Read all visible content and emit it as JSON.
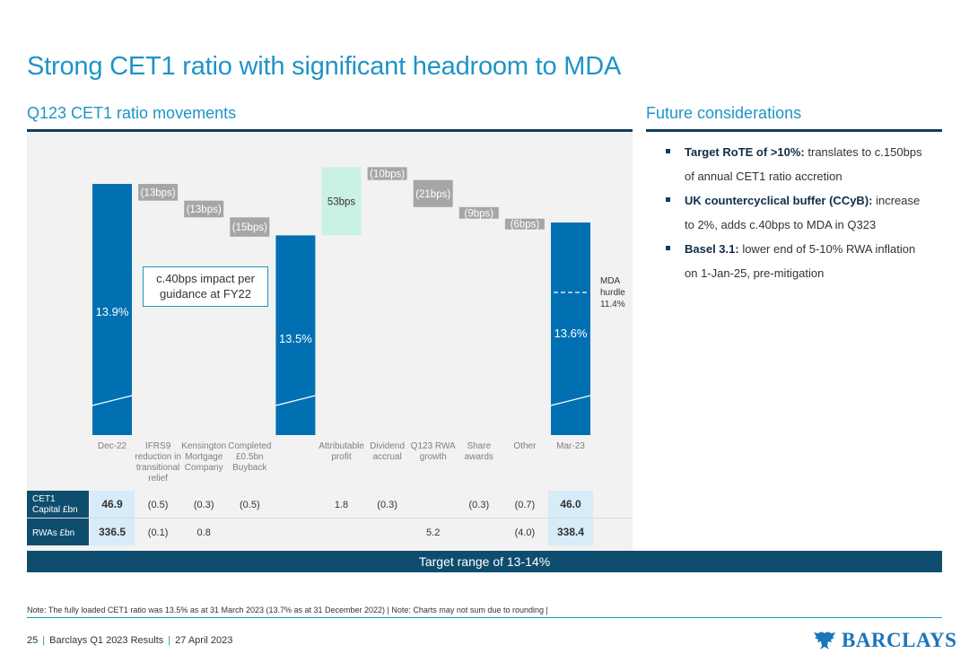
{
  "title": "Strong CET1 ratio with significant headroom to MDA",
  "left_section": {
    "heading": "Q123 CET1 ratio movements"
  },
  "right_section": {
    "heading": "Future considerations",
    "bullets": [
      {
        "bold": "Target RoTE of >10%:",
        "text": " translates to c.150bps of annual CET1 ratio accretion"
      },
      {
        "bold": "UK countercyclical buffer (CCyB):",
        "text": " increase to 2%, adds c.40bps to MDA in Q323"
      },
      {
        "bold": "Basel 3.1:",
        "text": " lower end of 5-10% RWA inflation on 1-Jan-25, pre-mitigation"
      }
    ]
  },
  "impact_note": "c.40bps impact per guidance at FY22",
  "target_range": "Target range of 13-14%",
  "note": "Note: The fully loaded CET1 ratio was 13.5% as at 31 March 2023 (13.7% as at 31 December 2022) | Note: Charts may not sum due to rounding |",
  "footer": {
    "page": "25",
    "doc": "Barclays Q1 2023 Results",
    "date": "27 April 2023"
  },
  "logo_text": "BARCLAYS",
  "colors": {
    "title": "#1e94c8",
    "total_bar": "#0070b2",
    "negative_bar": "#a6a6a6",
    "positive_bar": "#c9f2e4",
    "dark_navy": "#0f4d6e",
    "light_blue_cell": "#d7ebf8"
  },
  "chart_data": {
    "type": "waterfall",
    "title": "Q123 CET1 ratio movements",
    "unit": "%",
    "categories": [
      "Dec-22",
      "IFRS9 reduction in transitional relief",
      "Kensington Mortgage Company",
      "Completed £0.5bn Buyback",
      "",
      "Attributable profit",
      "Dividend accrual",
      "Q123 RWA growth",
      "Share awards",
      "Other",
      "Mar-23"
    ],
    "category_lines": [
      [
        "Dec-22"
      ],
      [
        "IFRS9",
        "reduction in",
        "transitional",
        "relief"
      ],
      [
        "Kensington",
        "Mortgage",
        "Company"
      ],
      [
        "Completed",
        "£0.5bn",
        "Buyback"
      ],
      [
        ""
      ],
      [
        "Attributable",
        "profit"
      ],
      [
        "Dividend",
        "accrual"
      ],
      [
        "Q123 RWA",
        "growth"
      ],
      [
        "Share",
        "awards"
      ],
      [
        "Other"
      ],
      [
        "Mar-23"
      ]
    ],
    "steps": [
      {
        "kind": "total",
        "value": 13.9,
        "label": "13.9%"
      },
      {
        "kind": "delta",
        "value": -0.13,
        "label": "(13bps)"
      },
      {
        "kind": "delta",
        "value": -0.13,
        "label": "(13bps)"
      },
      {
        "kind": "delta",
        "value": -0.15,
        "label": "(15bps)"
      },
      {
        "kind": "total",
        "value": 13.5,
        "label": "13.5%"
      },
      {
        "kind": "delta",
        "value": 0.53,
        "label": "53bps"
      },
      {
        "kind": "delta",
        "value": -0.1,
        "label": "(10bps)"
      },
      {
        "kind": "delta",
        "value": -0.21,
        "label": "(21bps)"
      },
      {
        "kind": "delta",
        "value": -0.09,
        "label": "(9bps)"
      },
      {
        "kind": "delta",
        "value": -0.06,
        "label": "(6bps)"
      },
      {
        "kind": "total",
        "value": 13.6,
        "label": "13.6%"
      }
    ],
    "mda_hurdle": {
      "lines": [
        "MDA",
        "hurdle",
        "11.4%"
      ],
      "value": 11.4
    },
    "table": {
      "rows": [
        {
          "label": [
            "CET1",
            "Capital £bn"
          ],
          "values": [
            "46.9",
            "(0.5)",
            "(0.3)",
            "(0.5)",
            "",
            "1.8",
            "(0.3)",
            "",
            "(0.3)",
            "(0.7)",
            "46.0"
          ]
        },
        {
          "label": [
            "RWAs £bn"
          ],
          "values": [
            "336.5",
            "(0.1)",
            "0.8",
            "",
            "",
            "",
            "",
            "5.2",
            "",
            "(4.0)",
            "338.4"
          ]
        }
      ]
    }
  }
}
